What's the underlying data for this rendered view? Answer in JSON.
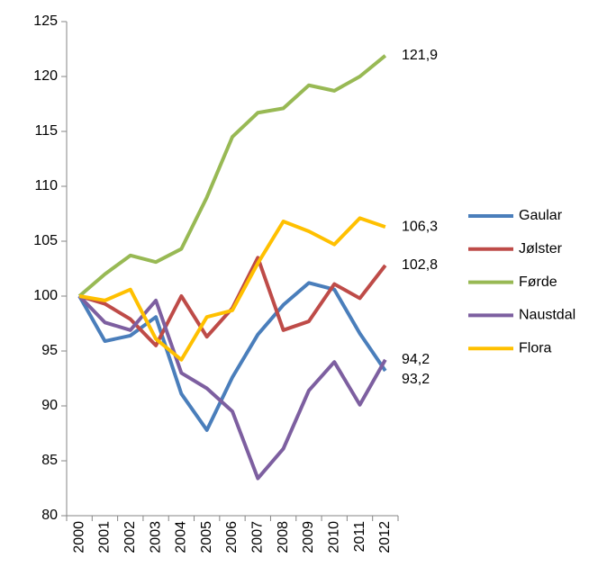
{
  "chart_data": {
    "type": "line",
    "categories": [
      "2000",
      "2001",
      "2002",
      "2003",
      "2004",
      "2005",
      "2006",
      "2007",
      "2008",
      "2009",
      "2010",
      "2011",
      "2012"
    ],
    "series": [
      {
        "name": "Gaular",
        "color": "#4a7ebb",
        "values": [
          100,
          95.9,
          96.4,
          98.1,
          91.1,
          87.8,
          92.6,
          96.5,
          99.2,
          101.2,
          100.6,
          96.6,
          93.2
        ],
        "value_labels": [
          null,
          null,
          null,
          null,
          null,
          null,
          null,
          null,
          null,
          null,
          null,
          null,
          "93,2"
        ]
      },
      {
        "name": "Jølster",
        "color": "#be4b48",
        "values": [
          100,
          99.3,
          97.9,
          95.5,
          100.0,
          96.3,
          98.9,
          103.5,
          96.9,
          97.7,
          101.1,
          99.8,
          102.8
        ],
        "value_labels": [
          null,
          null,
          null,
          null,
          null,
          null,
          null,
          null,
          null,
          null,
          null,
          null,
          "102,8"
        ]
      },
      {
        "name": "Førde",
        "color": "#98b954",
        "values": [
          100,
          102.0,
          103.7,
          103.1,
          104.3,
          109.0,
          114.5,
          116.7,
          117.1,
          119.2,
          118.7,
          120.0,
          121.9
        ],
        "value_labels": [
          null,
          null,
          null,
          null,
          null,
          null,
          null,
          null,
          null,
          null,
          null,
          null,
          "121,9"
        ]
      },
      {
        "name": "Naustdal",
        "color": "#7d5fa0",
        "values": [
          100,
          97.6,
          96.9,
          99.6,
          93.0,
          91.6,
          89.5,
          83.4,
          86.1,
          91.4,
          94.0,
          90.1,
          94.2
        ],
        "value_labels": [
          null,
          null,
          null,
          null,
          null,
          null,
          null,
          null,
          null,
          null,
          null,
          null,
          "94,2"
        ]
      },
      {
        "name": "Flora",
        "color": "#ffc000",
        "values": [
          100,
          99.6,
          100.6,
          96.1,
          94.2,
          98.1,
          98.7,
          103.0,
          106.8,
          105.9,
          104.7,
          107.1,
          106.3
        ],
        "value_labels": [
          null,
          null,
          null,
          null,
          null,
          null,
          null,
          null,
          null,
          null,
          null,
          null,
          "106,3"
        ]
      }
    ],
    "ylim": [
      80,
      125
    ],
    "yticks": [
      80,
      85,
      90,
      95,
      100,
      105,
      110,
      115,
      120,
      125
    ],
    "grid": false,
    "legend": "right"
  }
}
